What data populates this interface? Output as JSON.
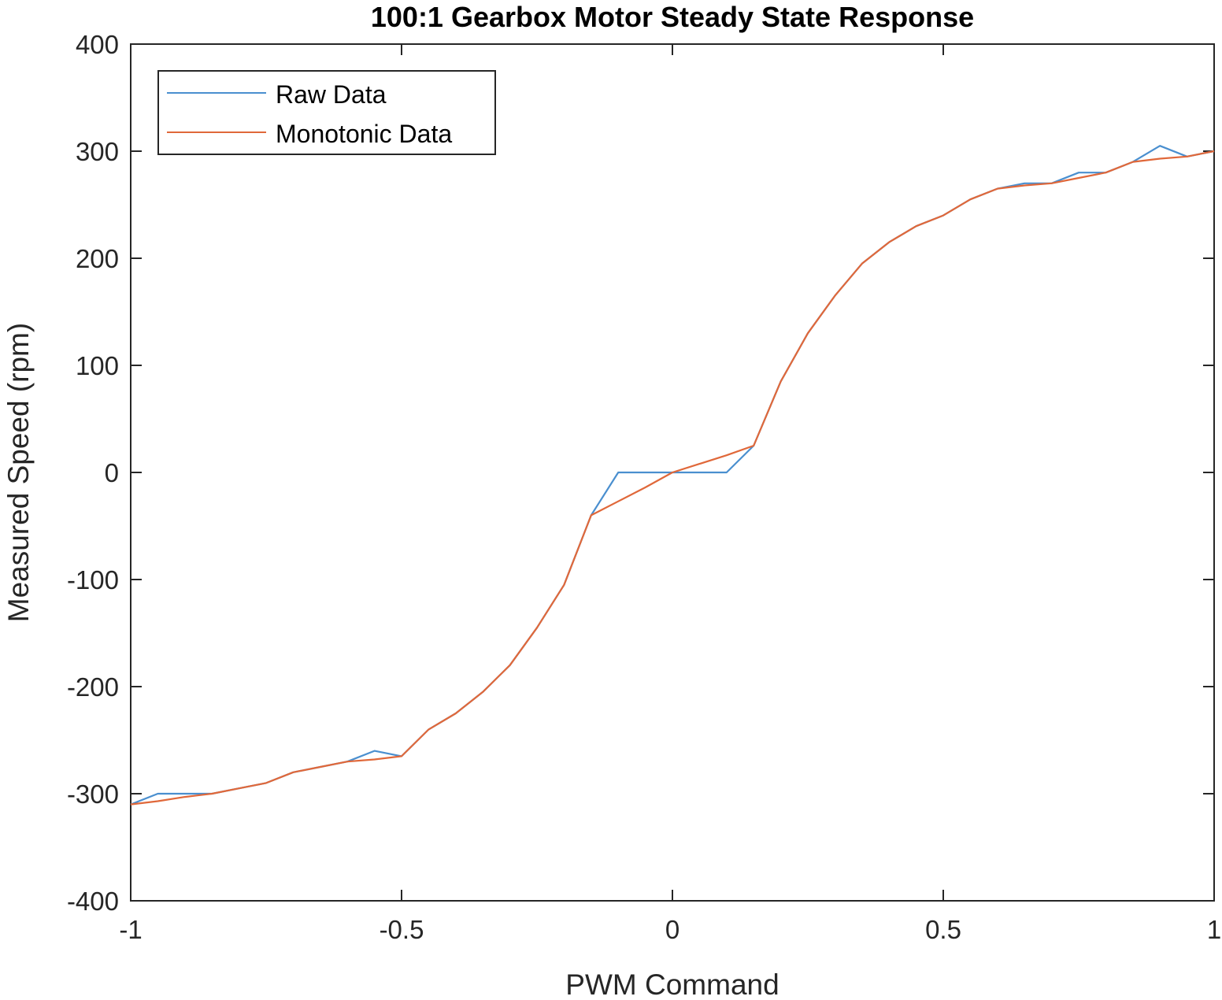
{
  "chart_data": {
    "type": "line",
    "title": "100:1 Gearbox Motor Steady State Response",
    "xlabel": "PWM Command",
    "ylabel": "Measured Speed (rpm)",
    "xlim": [
      -1,
      1
    ],
    "ylim": [
      -400,
      400
    ],
    "xticks": [
      -1,
      -0.5,
      0,
      0.5,
      1
    ],
    "xtick_labels": [
      "-1",
      "-0.5",
      "0",
      "0.5",
      "1"
    ],
    "yticks": [
      -400,
      -300,
      -200,
      -100,
      0,
      100,
      200,
      300,
      400
    ],
    "ytick_labels": [
      "-400",
      "-300",
      "-200",
      "-100",
      "0",
      "100",
      "200",
      "300",
      "400"
    ],
    "grid": false,
    "legend_position": "top-left",
    "series": [
      {
        "name": "Raw Data",
        "color": "#4a8fcf",
        "x": [
          -1,
          -0.95,
          -0.9,
          -0.85,
          -0.8,
          -0.75,
          -0.7,
          -0.65,
          -0.6,
          -0.55,
          -0.5,
          -0.45,
          -0.4,
          -0.35,
          -0.3,
          -0.25,
          -0.2,
          -0.15,
          -0.1,
          -0.05,
          0,
          0.05,
          0.1,
          0.15,
          0.2,
          0.25,
          0.3,
          0.35,
          0.4,
          0.45,
          0.5,
          0.55,
          0.6,
          0.65,
          0.7,
          0.75,
          0.8,
          0.85,
          0.9,
          0.95,
          1
        ],
        "y": [
          -310,
          -300,
          -300,
          -300,
          -295,
          -290,
          -280,
          -275,
          -270,
          -260,
          -265,
          -240,
          -225,
          -205,
          -180,
          -145,
          -105,
          -40,
          0,
          0,
          0,
          0,
          0,
          25,
          85,
          130,
          165,
          195,
          215,
          230,
          240,
          255,
          265,
          270,
          270,
          280,
          280,
          290,
          305,
          295,
          300
        ]
      },
      {
        "name": "Monotonic Data",
        "color": "#e0683a",
        "x": [
          -1,
          -0.95,
          -0.9,
          -0.85,
          -0.8,
          -0.75,
          -0.7,
          -0.65,
          -0.6,
          -0.55,
          -0.5,
          -0.45,
          -0.4,
          -0.35,
          -0.3,
          -0.25,
          -0.2,
          -0.15,
          -0.1,
          -0.05,
          0,
          0.05,
          0.1,
          0.15,
          0.2,
          0.25,
          0.3,
          0.35,
          0.4,
          0.45,
          0.5,
          0.55,
          0.6,
          0.65,
          0.7,
          0.75,
          0.8,
          0.85,
          0.9,
          0.95,
          1
        ],
        "y": [
          -310,
          -307,
          -303,
          -300,
          -295,
          -290,
          -280,
          -275,
          -270,
          -268,
          -265,
          -240,
          -225,
          -205,
          -180,
          -145,
          -105,
          -40,
          -27,
          -14,
          0,
          8,
          16,
          25,
          85,
          130,
          165,
          195,
          215,
          230,
          240,
          255,
          265,
          268,
          270,
          275,
          280,
          290,
          293,
          295,
          300
        ]
      }
    ]
  }
}
